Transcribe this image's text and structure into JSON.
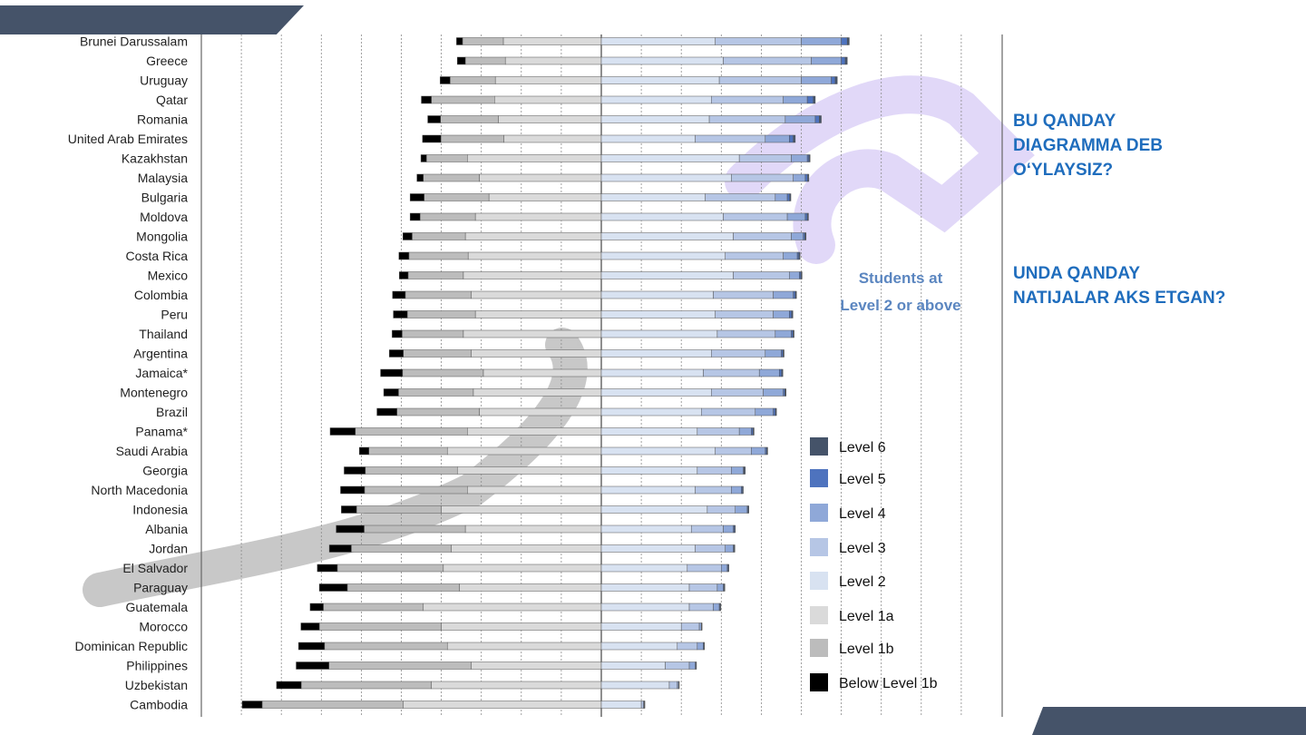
{
  "colors": {
    "banner": "#455369",
    "accent_text": "#1f6dbd",
    "annotation": "#5b86c0",
    "watermark_purple": "#c9b8f3",
    "watermark_gray": "#9a9a9a",
    "axis_line": "#666666",
    "grid_line": "#8a8a8a"
  },
  "questions": {
    "q1": "BU QANDAY\nDIAGRAMMA DEB\nO‘YLAYSIZ?",
    "q2": " UNDA QANDAY\nNATIJALAR AKS ETGAN?"
  },
  "chart_data": {
    "type": "bar",
    "orientation": "horizontal",
    "stacked": "diverging",
    "title": "",
    "xlabel": "",
    "ylabel": "",
    "grid": true,
    "x_unit": "percent of students",
    "xlim": [
      -100,
      100
    ],
    "annotation": {
      "line1": "Students at",
      "line2": "Level 2 or above"
    },
    "legend_position": "bottom-right",
    "levels": [
      {
        "name": "Level 6",
        "color": "#455369"
      },
      {
        "name": "Level 5",
        "color": "#4e73be"
      },
      {
        "name": "Level 4",
        "color": "#8fa8d8"
      },
      {
        "name": "Level 3",
        "color": "#b6c6e5"
      },
      {
        "name": "Level 2",
        "color": "#d8e2f1"
      },
      {
        "name": "Level 1a",
        "color": "#dadada"
      },
      {
        "name": "Level 1b",
        "color": "#bcbcbc"
      },
      {
        "name": "Below Level 1b",
        "color": "#000000"
      }
    ],
    "categories": [
      "Brunei Darussalam",
      "Greece",
      "Uruguay",
      "Qatar",
      "Romania",
      "United Arab Emirates",
      "Kazakhstan",
      "Malaysia",
      "Bulgaria",
      "Moldova",
      "Mongolia",
      "Costa Rica",
      "Mexico",
      "Colombia",
      "Peru",
      "Thailand",
      "Argentina",
      "Jamaica*",
      "Montenegro",
      "Brazil",
      "Panama*",
      "Saudi Arabia",
      "Georgia",
      "North Macedonia",
      "Indonesia",
      "Albania",
      "Jordan",
      "El Salvador",
      "Paraguay",
      "Guatemala",
      "Morocco",
      "Dominican Republic",
      "Philippines",
      "Uzbekistan",
      "Cambodia"
    ],
    "series": [
      {
        "name": "Below Level 1b",
        "values": [
          1.5,
          2.0,
          2.5,
          2.5,
          3.2,
          4.6,
          1.4,
          1.6,
          3.5,
          2.5,
          2.3,
          2.5,
          2.2,
          3.2,
          3.5,
          2.5,
          3.5,
          5.5,
          3.7,
          5.0,
          6.3,
          2.4,
          5.3,
          6.0,
          3.8,
          7.0,
          5.5,
          5.0,
          7.0,
          3.3,
          4.6,
          6.5,
          8.2,
          6.2,
          5.0
        ],
        "neg": true
      },
      {
        "name": "Level 1b",
        "values": [
          10.2,
          10.0,
          11.3,
          15.8,
          14.5,
          15.7,
          10.2,
          14.0,
          16.2,
          13.8,
          13.3,
          14.8,
          13.8,
          16.5,
          17.0,
          15.3,
          17.0,
          20.2,
          18.7,
          20.6,
          28.0,
          19.6,
          23.0,
          25.7,
          21.2,
          25.3,
          25.0,
          26.5,
          28.0,
          25.0,
          30.5,
          30.7,
          35.6,
          32.5,
          35.3
        ]
      },
      {
        "name": "Level 1a",
        "values": [
          24.5,
          24.0,
          26.5,
          26.7,
          25.7,
          24.4,
          33.5,
          30.5,
          28.1,
          31.5,
          34.0,
          33.3,
          34.5,
          32.5,
          31.5,
          34.5,
          32.5,
          29.5,
          32.0,
          30.5,
          33.5,
          38.5,
          36.0,
          33.5,
          40.0,
          34.0,
          37.5,
          39.5,
          35.5,
          44.5,
          40.0,
          38.5,
          32.5,
          42.5,
          49.5
        ],
        "neg": true
      },
      {
        "name": "Level 2",
        "values": [
          28.5,
          30.5,
          29.5,
          27.5,
          27.0,
          23.5,
          34.5,
          32.5,
          26.0,
          30.5,
          33.0,
          31.0,
          33.0,
          28.0,
          28.5,
          29.0,
          27.5,
          25.5,
          27.5,
          25.0,
          24.0,
          28.5,
          24.0,
          23.5,
          26.5,
          22.5,
          23.5,
          21.5,
          22.0,
          22.0,
          20.0,
          19.0,
          16.0,
          17.0,
          10.0
        ]
      },
      {
        "name": "Level 3",
        "values": [
          21.5,
          22.0,
          20.5,
          18.0,
          19.0,
          17.5,
          13.0,
          15.5,
          17.5,
          16.0,
          14.5,
          14.5,
          14.0,
          15.0,
          14.5,
          14.5,
          13.5,
          14.0,
          13.0,
          13.5,
          10.5,
          9.0,
          8.5,
          9.0,
          7.0,
          8.0,
          7.5,
          8.5,
          7.0,
          6.0,
          4.5,
          5.0,
          6.0,
          2.0,
          0.5
        ]
      },
      {
        "name": "Level 4",
        "values": [
          10.0,
          7.5,
          7.5,
          6.0,
          7.5,
          6.0,
          4.0,
          3.0,
          3.0,
          4.5,
          3.0,
          3.5,
          2.5,
          5.0,
          4.0,
          4.0,
          4.0,
          5.0,
          5.0,
          4.5,
          3.0,
          3.5,
          3.0,
          2.5,
          3.0,
          2.5,
          2.0,
          1.5,
          1.5,
          1.5,
          0.5,
          1.5,
          1.5,
          0.3,
          0.2
        ]
      },
      {
        "name": "Level 5",
        "values": [
          1.5,
          1.0,
          1.0,
          1.5,
          1.0,
          1.0,
          0.4,
          0.6,
          0.6,
          0.5,
          0.4,
          0.4,
          0.4,
          0.5,
          0.6,
          0.4,
          0.4,
          0.6,
          0.4,
          0.5,
          0.4,
          0.3,
          0.2,
          0.3,
          0.2,
          0.3,
          0.2,
          0.2,
          0.2,
          0.2,
          0.1,
          0.2,
          0.2,
          0.1,
          0.1
        ]
      },
      {
        "name": "Level 6",
        "values": [
          0.5,
          0.5,
          0.5,
          0.5,
          0.5,
          0.5,
          0.3,
          0.3,
          0.3,
          0.3,
          0.3,
          0.3,
          0.3,
          0.3,
          0.3,
          0.3,
          0.3,
          0.3,
          0.3,
          0.3,
          0.3,
          0.3,
          0.3,
          0.2,
          0.2,
          0.2,
          0.2,
          0.2,
          0.2,
          0.2,
          0.1,
          0.1,
          0.1,
          0.1,
          0.1
        ]
      }
    ]
  }
}
